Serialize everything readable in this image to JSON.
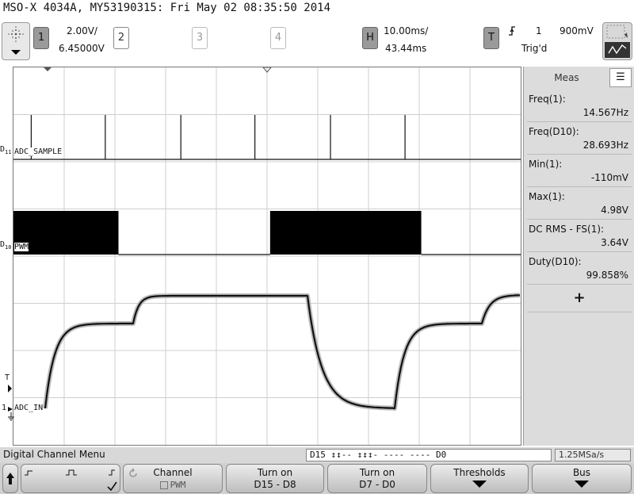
{
  "title": "MSO-X 4034A, MY53190315: Fri May 02 08:35:50 2014",
  "header": {
    "channels": [
      {
        "label": "1",
        "scale": "2.00V/",
        "offset": "6.45000V"
      },
      {
        "label": "2"
      },
      {
        "label": "3"
      },
      {
        "label": "4"
      }
    ],
    "horizontal": {
      "label": "H",
      "scale": "10.00ms/",
      "delay": "43.44ms"
    },
    "trigger": {
      "label": "T",
      "source": "1",
      "level": "900mV",
      "status": "Trig'd"
    }
  },
  "plot": {
    "rows": [
      {
        "index": "D11",
        "index_main": "D",
        "index_sub": "11",
        "name": "ADC_SAMPLE"
      },
      {
        "index": "D10",
        "index_main": "D",
        "index_sub": "10",
        "name": "PWM"
      },
      {
        "index": "1",
        "name": "ADC_IN"
      }
    ],
    "trigger_marker": "T",
    "sample_pulses_ms": [
      3.5,
      18.1,
      33.0,
      47.6,
      62.5,
      77.2
    ],
    "pwm_high_intervals_ms": [
      [
        0.0,
        20.7
      ],
      [
        50.6,
        80.4
      ]
    ],
    "colors": {
      "trace": "#111111",
      "grid": "#cfcfcf",
      "pwm": "#000000"
    }
  },
  "meas": {
    "tab": "Meas",
    "list_icon": "list-icon",
    "items": [
      {
        "label": "Freq(1):",
        "value": "14.567Hz"
      },
      {
        "label": "Freq(D10):",
        "value": "28.693Hz"
      },
      {
        "label": "Min(1):",
        "value": "-110mV"
      },
      {
        "label": "Max(1):",
        "value": "4.98V"
      },
      {
        "label": "DC RMS - FS(1):",
        "value": "3.64V"
      },
      {
        "label": "Duty(D10):",
        "value": "99.858%"
      }
    ],
    "add_label": "+"
  },
  "status": {
    "menu_title": "Digital Channel Menu",
    "bits": "D15 ↕↕-- ↕↕↕- ---- ---- D0",
    "sample_rate": "1.25MSa/s"
  },
  "softkeys": {
    "channel": {
      "label": "Channel",
      "value": "PWM"
    },
    "turn_on_high": {
      "label": "Turn on",
      "value": "D15 - D8"
    },
    "turn_on_low": {
      "label": "Turn on",
      "value": "D7 - D0"
    },
    "thresholds": {
      "label": "Thresholds"
    },
    "bus": {
      "label": "Bus"
    }
  }
}
